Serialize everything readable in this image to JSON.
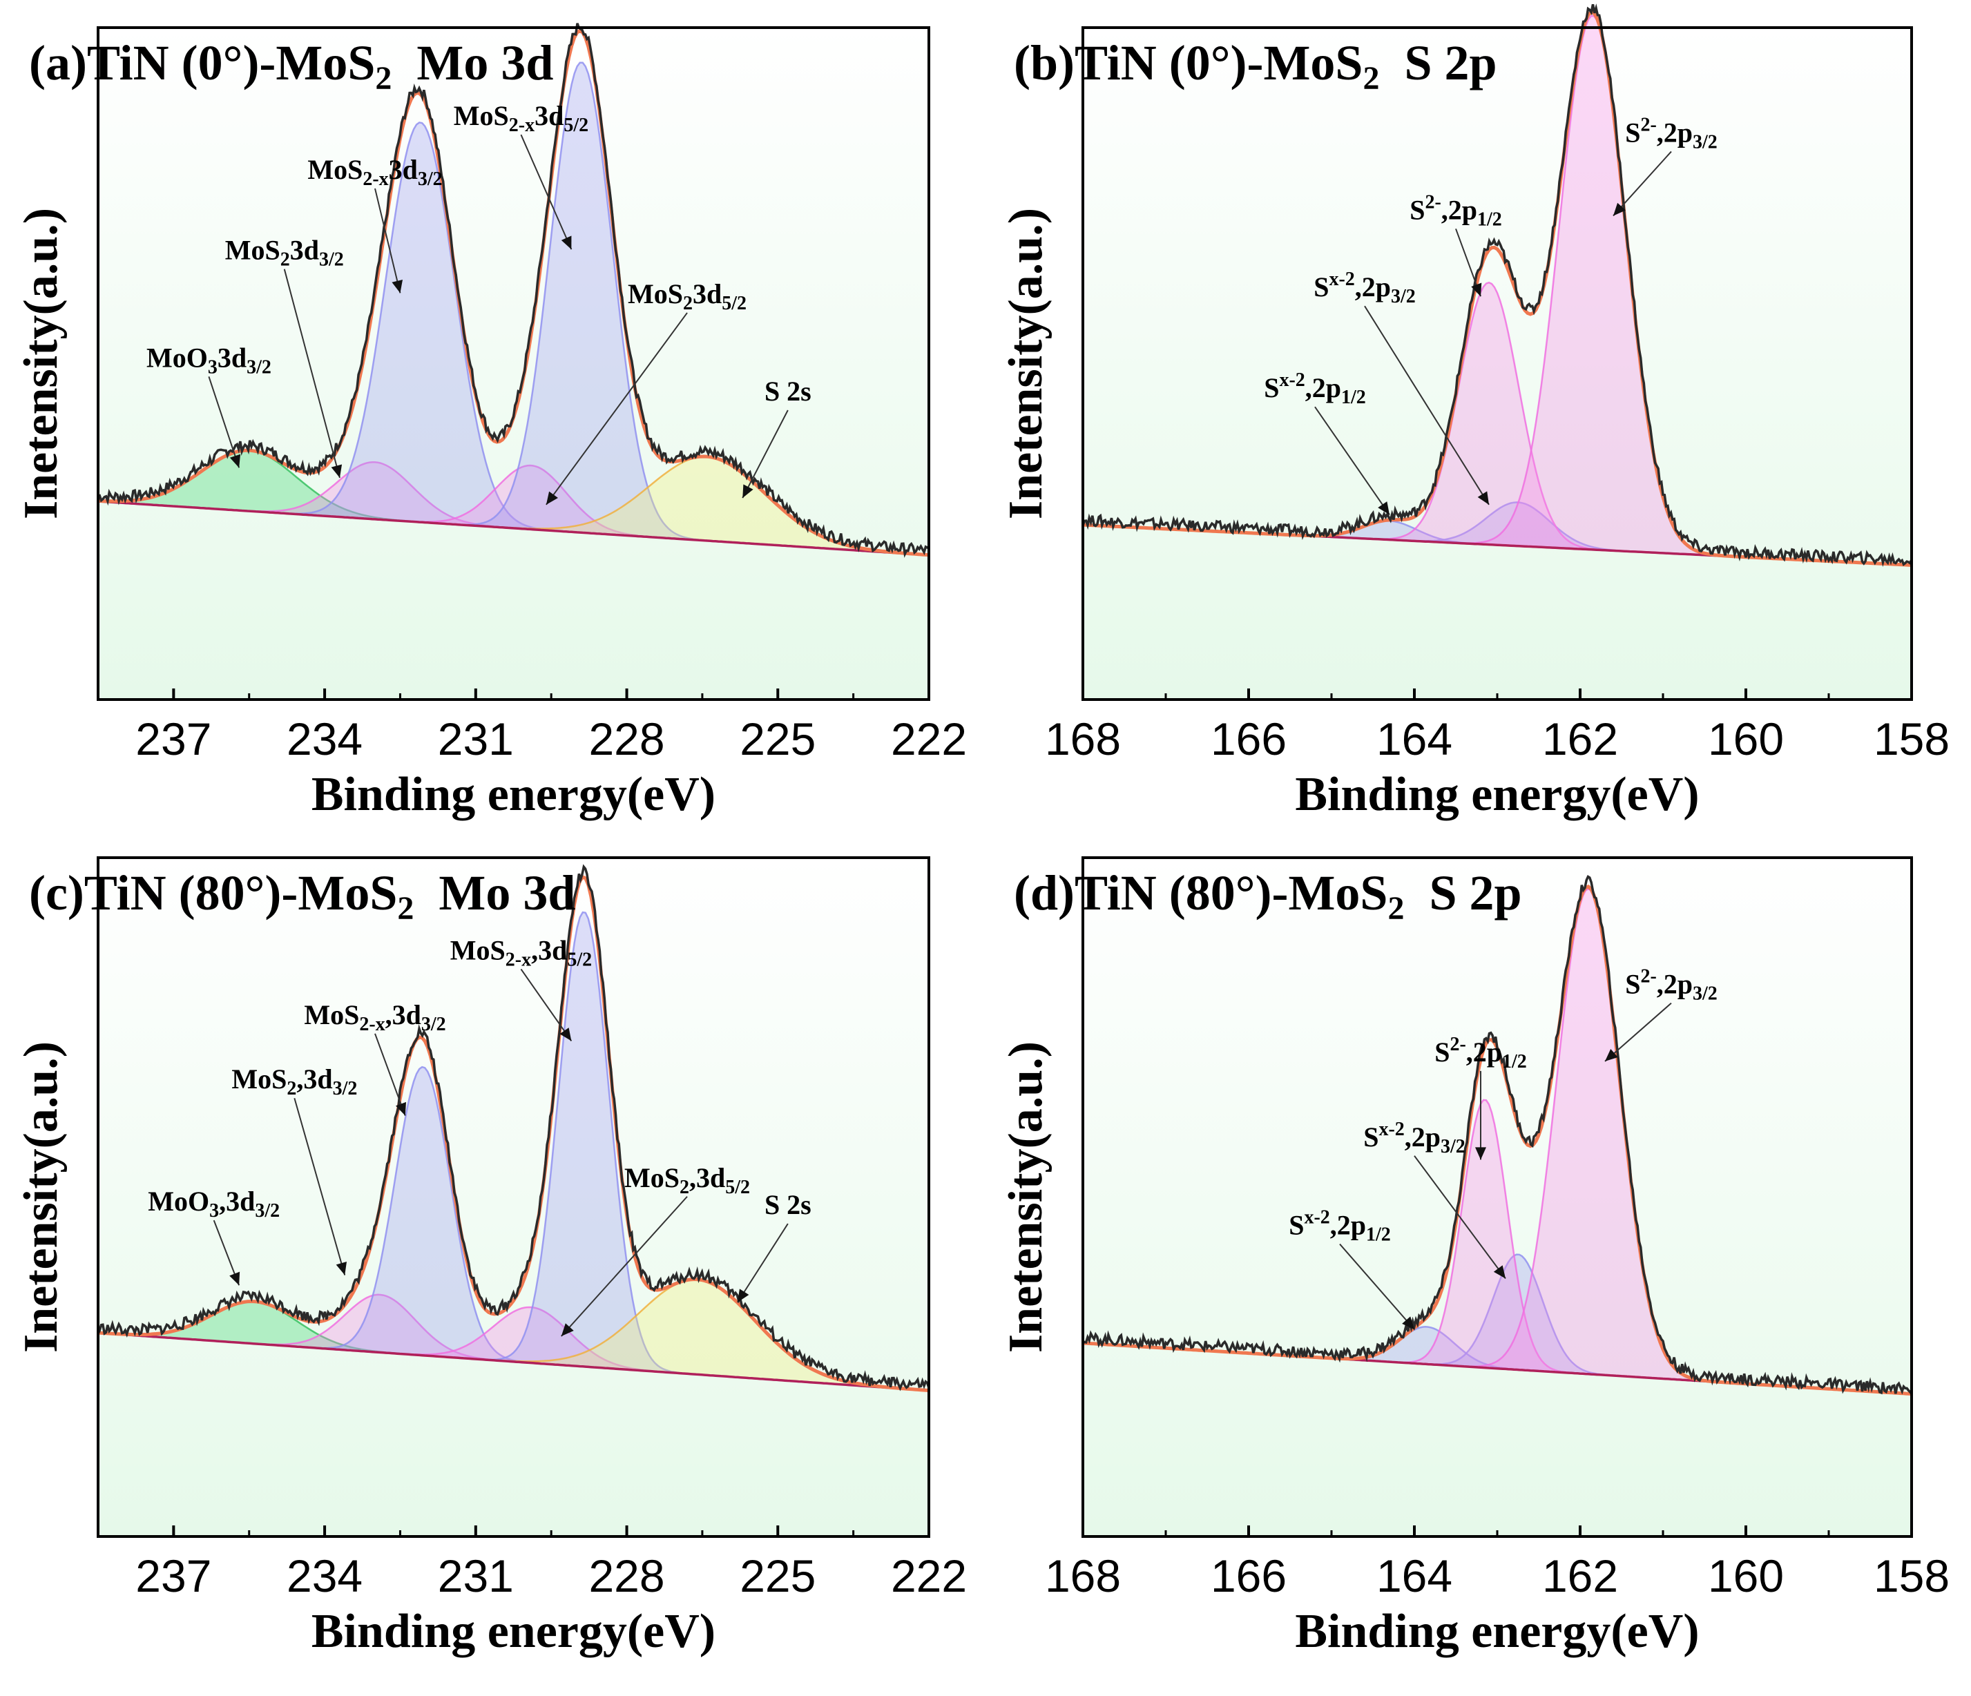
{
  "chart_data": [
    {
      "type": "line",
      "panel": "(a)",
      "title": {
        "pre": "TiN (0°)-MoS",
        "sub": "2",
        "post": "Mo 3d"
      },
      "xlabel": "Binding energy(eV)",
      "ylabel": "Inetensity(a.u.)",
      "xlim": [
        238.5,
        222
      ],
      "ylim": [
        0,
        10
      ],
      "xticks": [
        237,
        234,
        231,
        228,
        225,
        222
      ],
      "baseline": {
        "left": 2.95,
        "right": 2.15
      },
      "peaks": [
        {
          "name": "MoO3 3d3/2",
          "color": "#37d46a",
          "center": 235.5,
          "amp": 0.9,
          "sigma": 0.95,
          "line": "#37c060"
        },
        {
          "name": "MoS2 3d3/2",
          "color": "#f58ae6",
          "center": 233.0,
          "amp": 0.85,
          "sigma": 0.75,
          "line": "#f070e0"
        },
        {
          "name": "MoS2-x 3d3/2",
          "color": "#9a9aef",
          "center": 232.1,
          "amp": 5.95,
          "sigma": 0.68,
          "line": "#9090f0"
        },
        {
          "name": "MoS2 3d5/2",
          "color": "#f58ae6",
          "center": 229.9,
          "amp": 0.95,
          "sigma": 0.7,
          "line": "#f070e0"
        },
        {
          "name": "MoS2-x 3d5/2",
          "color": "#9a9aef",
          "center": 228.9,
          "amp": 7.0,
          "sigma": 0.62,
          "line": "#9090f0"
        },
        {
          "name": "S 2s",
          "color": "#f4f07a",
          "center": 226.4,
          "amp": 1.25,
          "sigma": 1.15,
          "line": "#f0b040"
        }
      ],
      "annotations": [
        {
          "label": [
            [
              "MoO",
              ""
            ],
            [
              "3",
              "sub"
            ],
            [
              "3d",
              ""
            ],
            [
              "3/2",
              "sub"
            ]
          ],
          "tx": 236.3,
          "ty": 4.95,
          "ax": 235.7,
          "ay": 3.45
        },
        {
          "label": [
            [
              "MoS",
              ""
            ],
            [
              "2",
              "sub"
            ],
            [
              "3d",
              ""
            ],
            [
              "3/2",
              "sub"
            ]
          ],
          "tx": 234.8,
          "ty": 6.55,
          "ax": 233.7,
          "ay": 3.3
        },
        {
          "label": [
            [
              "MoS",
              ""
            ],
            [
              "2-x",
              "sub"
            ],
            [
              "3d",
              ""
            ],
            [
              "3/2",
              "sub"
            ]
          ],
          "tx": 233.0,
          "ty": 7.75,
          "ax": 232.5,
          "ay": 6.05
        },
        {
          "label": [
            [
              "MoS",
              ""
            ],
            [
              "2-x",
              "sub"
            ],
            [
              "3d",
              ""
            ],
            [
              "5/2",
              "sub"
            ]
          ],
          "tx": 230.1,
          "ty": 8.55,
          "ax": 229.1,
          "ay": 6.7
        },
        {
          "label": [
            [
              "MoS",
              ""
            ],
            [
              "2",
              "sub"
            ],
            [
              "3d",
              ""
            ],
            [
              "5/2",
              "sub"
            ]
          ],
          "tx": 226.8,
          "ty": 5.9,
          "ax": 229.6,
          "ay": 2.9
        },
        {
          "label": [
            [
              "S 2s",
              ""
            ]
          ],
          "tx": 224.8,
          "ty": 4.45,
          "ax": 225.7,
          "ay": 3.0
        }
      ]
    },
    {
      "type": "line",
      "panel": "(b)",
      "title": {
        "pre": "TiN (0°)-MoS",
        "sub": "2",
        "post": "S 2p"
      },
      "xlabel": "Binding energy(eV)",
      "ylabel": "Inetensity(a.u.)",
      "xlim": [
        168,
        158
      ],
      "ylim": [
        0,
        10
      ],
      "xticks": [
        168,
        166,
        164,
        162,
        160,
        158
      ],
      "baseline": {
        "left": 2.6,
        "right": 2.0
      },
      "peaks": [
        {
          "name": "Sx-2 2p1/2",
          "color": "#9a9aef",
          "center": 164.3,
          "amp": 0.28,
          "sigma": 0.33,
          "line": "#9090f0"
        },
        {
          "name": "Sx-2 2p3/2",
          "color": "#9a9aef",
          "center": 162.75,
          "amp": 0.65,
          "sigma": 0.38,
          "line": "#9090f0"
        },
        {
          "name": "S2- 2p1/2",
          "color": "#f58ae6",
          "center": 163.1,
          "amp": 3.9,
          "sigma": 0.36,
          "line": "#f070e0"
        },
        {
          "name": "S2- 2p3/2",
          "color": "#f58ae6",
          "center": 161.85,
          "amp": 7.95,
          "sigma": 0.4,
          "line": "#f070e0"
        }
      ],
      "annotations": [
        {
          "label": [
            [
              "S",
              ""
            ],
            [
              "x-2",
              "sup"
            ],
            [
              ",2p",
              ""
            ],
            [
              "1/2",
              "sub"
            ]
          ],
          "tx": 165.2,
          "ty": 4.5,
          "ax": 164.3,
          "ay": 2.75
        },
        {
          "label": [
            [
              "S",
              ""
            ],
            [
              "x-2",
              "sup"
            ],
            [
              ",2p",
              ""
            ],
            [
              "3/2",
              "sub"
            ]
          ],
          "tx": 164.6,
          "ty": 6.0,
          "ax": 163.1,
          "ay": 2.9
        },
        {
          "label": [
            [
              "S",
              ""
            ],
            [
              "2-",
              "sup"
            ],
            [
              ",2p",
              ""
            ],
            [
              "1/2",
              "sub"
            ]
          ],
          "tx": 163.5,
          "ty": 7.15,
          "ax": 163.2,
          "ay": 6.0
        },
        {
          "label": [
            [
              "S",
              ""
            ],
            [
              "2-",
              "sup"
            ],
            [
              ",2p",
              ""
            ],
            [
              "3/2",
              "sub"
            ]
          ],
          "tx": 160.9,
          "ty": 8.3,
          "ax": 161.6,
          "ay": 7.2
        }
      ]
    },
    {
      "type": "line",
      "panel": "(c)",
      "title": {
        "pre": "TiN (80°)-MoS",
        "sub": "2",
        "post": "Mo 3d"
      },
      "xlabel": "Binding energy(eV)",
      "ylabel": "Inetensity(a.u.)",
      "xlim": [
        238.5,
        222
      ],
      "ylim": [
        0,
        10
      ],
      "xticks": [
        237,
        234,
        231,
        228,
        225,
        222
      ],
      "baseline": {
        "left": 3.0,
        "right": 2.15
      },
      "peaks": [
        {
          "name": "MoO3 3d3/2",
          "color": "#37d46a",
          "center": 235.4,
          "amp": 0.62,
          "sigma": 0.85,
          "line": "#37c060"
        },
        {
          "name": "MoS2 3d3/2",
          "color": "#f58ae6",
          "center": 232.9,
          "amp": 0.85,
          "sigma": 0.7,
          "line": "#f070e0"
        },
        {
          "name": "MoS2-x 3d3/2",
          "color": "#9a9aef",
          "center": 232.05,
          "amp": 4.25,
          "sigma": 0.55,
          "line": "#9090f0"
        },
        {
          "name": "MoS2 3d5/2",
          "color": "#f58ae6",
          "center": 229.9,
          "amp": 0.82,
          "sigma": 0.75,
          "line": "#f070e0"
        },
        {
          "name": "MoS2-x 3d5/2",
          "color": "#9a9aef",
          "center": 228.85,
          "amp": 6.7,
          "sigma": 0.5,
          "line": "#9090f0"
        },
        {
          "name": "S 2s",
          "color": "#f4f07a",
          "center": 226.6,
          "amp": 1.4,
          "sigma": 1.15,
          "line": "#f0b040"
        }
      ],
      "annotations": [
        {
          "label": [
            [
              "MoO",
              ""
            ],
            [
              "3",
              "sub"
            ],
            [
              ",3d",
              ""
            ],
            [
              "3/2",
              "sub"
            ]
          ],
          "tx": 236.2,
          "ty": 4.8,
          "ax": 235.7,
          "ay": 3.7
        },
        {
          "label": [
            [
              "MoS",
              ""
            ],
            [
              "2",
              "sub"
            ],
            [
              ",3d",
              ""
            ],
            [
              "3/2",
              "sub"
            ]
          ],
          "tx": 234.6,
          "ty": 6.6,
          "ax": 233.6,
          "ay": 3.85
        },
        {
          "label": [
            [
              "MoS",
              ""
            ],
            [
              "2-x",
              "sub"
            ],
            [
              ",3d",
              ""
            ],
            [
              "3/2",
              "sub"
            ]
          ],
          "tx": 233.0,
          "ty": 7.55,
          "ax": 232.4,
          "ay": 6.2
        },
        {
          "label": [
            [
              "MoS",
              ""
            ],
            [
              "2-x",
              "sub"
            ],
            [
              ",3d",
              ""
            ],
            [
              "5/2",
              "sub"
            ]
          ],
          "tx": 230.1,
          "ty": 8.5,
          "ax": 229.1,
          "ay": 7.3
        },
        {
          "label": [
            [
              "MoS",
              ""
            ],
            [
              "2",
              "sub"
            ],
            [
              ",3d",
              ""
            ],
            [
              "5/2",
              "sub"
            ]
          ],
          "tx": 226.8,
          "ty": 5.15,
          "ax": 229.3,
          "ay": 2.95
        },
        {
          "label": [
            [
              "S 2s",
              ""
            ]
          ],
          "tx": 224.8,
          "ty": 4.75,
          "ax": 225.8,
          "ay": 3.45
        }
      ]
    },
    {
      "type": "line",
      "panel": "(d)",
      "title": {
        "pre": "TiN (80°)-MoS",
        "sub": "2",
        "post": "S 2p"
      },
      "xlabel": "Binding energy(eV)",
      "ylabel": "Inetensity(a.u.)",
      "xlim": [
        168,
        158
      ],
      "ylim": [
        0,
        10
      ],
      "xticks": [
        168,
        166,
        164,
        162,
        160,
        158
      ],
      "baseline": {
        "left": 2.85,
        "right": 2.1
      },
      "peaks": [
        {
          "name": "Sx-2 2p1/2",
          "color": "#9a9aef",
          "center": 163.85,
          "amp": 0.55,
          "sigma": 0.33,
          "line": "#9090f0"
        },
        {
          "name": "Sx-2 2p3/2",
          "color": "#9a9aef",
          "center": 162.75,
          "amp": 1.7,
          "sigma": 0.3,
          "line": "#9090f0"
        },
        {
          "name": "S2- 2p1/2",
          "color": "#f58ae6",
          "center": 163.15,
          "amp": 3.95,
          "sigma": 0.27,
          "line": "#f070e0"
        },
        {
          "name": "S2- 2p3/2",
          "color": "#f58ae6",
          "center": 161.9,
          "amp": 7.15,
          "sigma": 0.38,
          "line": "#f070e0"
        }
      ],
      "annotations": [
        {
          "label": [
            [
              "S",
              ""
            ],
            [
              "x-2",
              "sup"
            ],
            [
              ",2p",
              ""
            ],
            [
              "1/2",
              "sub"
            ]
          ],
          "tx": 164.9,
          "ty": 4.45,
          "ax": 164.0,
          "ay": 3.05
        },
        {
          "label": [
            [
              "S",
              ""
            ],
            [
              "x-2",
              "sup"
            ],
            [
              ",2p",
              ""
            ],
            [
              "3/2",
              "sub"
            ]
          ],
          "tx": 164.0,
          "ty": 5.75,
          "ax": 162.9,
          "ay": 3.8
        },
        {
          "label": [
            [
              "S",
              ""
            ],
            [
              "2-",
              "sup"
            ],
            [
              ",2p",
              ""
            ],
            [
              "1/2",
              "sub"
            ]
          ],
          "tx": 163.2,
          "ty": 7.0,
          "ax": 163.2,
          "ay": 5.55
        },
        {
          "label": [
            [
              "S",
              ""
            ],
            [
              "2-",
              "sup"
            ],
            [
              ",2p",
              ""
            ],
            [
              "3/2",
              "sub"
            ]
          ],
          "tx": 160.9,
          "ty": 8.0,
          "ax": 161.7,
          "ay": 7.0
        }
      ]
    }
  ]
}
